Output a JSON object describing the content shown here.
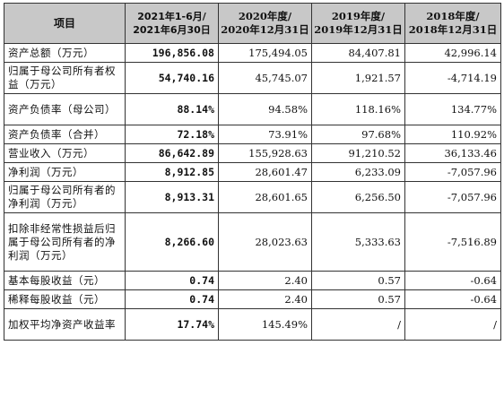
{
  "table": {
    "headers": [
      {
        "line1": "项目",
        "line2": ""
      },
      {
        "line1": "2021年1-6月/",
        "line2": "2021年6月30日"
      },
      {
        "line1": "2020年度/",
        "line2": "2020年12月31日"
      },
      {
        "line1": "2019年度/",
        "line2": "2019年12月31日"
      },
      {
        "line1": "2018年度/",
        "line2": "2018年12月31日"
      }
    ],
    "rows": [
      {
        "label": "资产总额（万元）",
        "values": [
          "196,856.08",
          "175,494.05",
          "84,407.81",
          "42,996.14"
        ]
      },
      {
        "label": "归属于母公司所有者权益（万元）",
        "values": [
          "54,740.16",
          "45,745.07",
          "1,921.57",
          "-4,714.19"
        ]
      },
      {
        "label": "资产负债率（母公司）",
        "values": [
          "88.14%",
          "94.58%",
          "118.16%",
          "134.77%"
        ]
      },
      {
        "label": "资产负债率（合并）",
        "values": [
          "72.18%",
          "73.91%",
          "97.68%",
          "110.92%"
        ]
      },
      {
        "label": "营业收入（万元）",
        "values": [
          "86,642.89",
          "155,928.63",
          "91,210.52",
          "36,133.46"
        ]
      },
      {
        "label": "净利润（万元）",
        "values": [
          "8,912.85",
          "28,601.47",
          "6,233.09",
          "-7,057.96"
        ]
      },
      {
        "label": "归属于母公司所有者的净利润（万元）",
        "values": [
          "8,913.31",
          "28,601.65",
          "6,256.50",
          "-7,057.96"
        ]
      },
      {
        "label": "扣除非经常性损益后归属于母公司所有者的净利润（万元）",
        "values": [
          "8,266.60",
          "28,023.63",
          "5,333.63",
          "-7,516.89"
        ]
      },
      {
        "label": "基本每股收益（元）",
        "values": [
          "0.74",
          "2.40",
          "0.57",
          "-0.64"
        ]
      },
      {
        "label": "稀释每股收益（元）",
        "values": [
          "0.74",
          "2.40",
          "0.57",
          "-0.64"
        ]
      },
      {
        "label": "加权平均净资产收益率",
        "values": [
          "17.74%",
          "145.49%",
          "/",
          "/"
        ]
      }
    ]
  }
}
